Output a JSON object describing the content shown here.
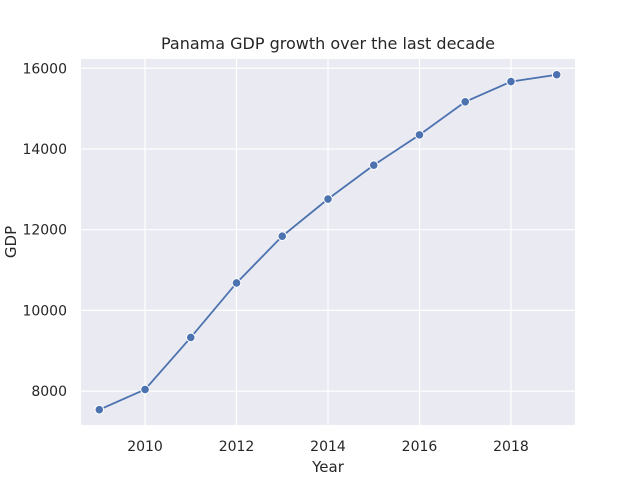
{
  "chart_data": {
    "type": "line",
    "title": "Panama GDP growth over the last decade",
    "xlabel": "Year",
    "ylabel": "GDP",
    "x": [
      2009,
      2010,
      2011,
      2012,
      2013,
      2014,
      2015,
      2016,
      2017,
      2018,
      2019
    ],
    "series": [
      {
        "values": [
          7540,
          8040,
          9330,
          10680,
          11840,
          12760,
          13600,
          14350,
          15170,
          15670,
          15840
        ]
      }
    ],
    "xlim": [
      2008.6,
      2019.4
    ],
    "ylim": [
      7160,
      16230
    ],
    "xticks": [
      2010,
      2012,
      2014,
      2016,
      2018
    ],
    "yticks": [
      8000,
      10000,
      12000,
      14000,
      16000
    ],
    "grid": true,
    "colors": {
      "line": "#4c72b0",
      "background": "#eaeaf2",
      "grid": "#ffffff"
    }
  }
}
